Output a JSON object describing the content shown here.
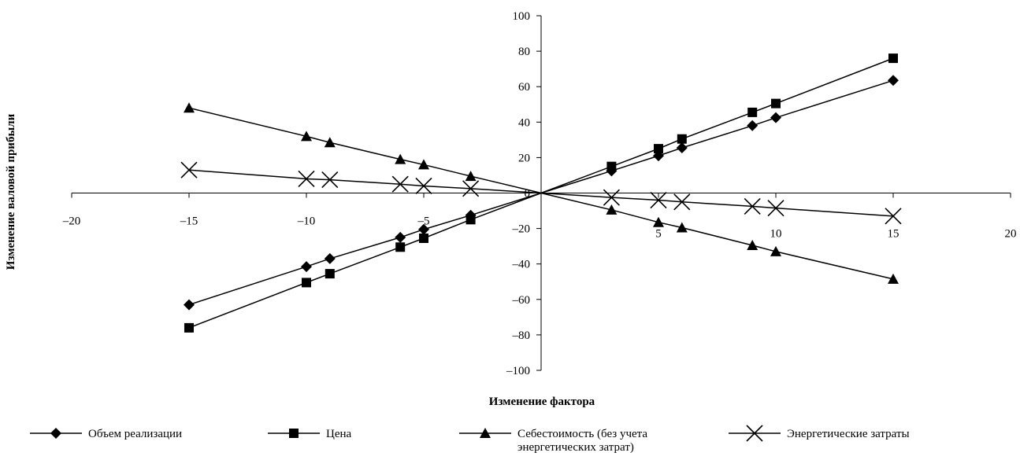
{
  "chart_data": {
    "type": "line",
    "xlabel": "Изменение фактора",
    "ylabel": "Изменение валовой прибыли",
    "xlim": [
      -20,
      20
    ],
    "ylim": [
      -100,
      100
    ],
    "x_ticks": [
      -20,
      -15,
      -10,
      -5,
      5,
      10,
      15,
      20
    ],
    "y_ticks": [
      100,
      80,
      60,
      40,
      20,
      0,
      -20,
      -40,
      -60,
      -80,
      -100
    ],
    "x_tick_labels": [
      "–20",
      "–15",
      "–10",
      "–5",
      "5",
      "10",
      "15",
      "20"
    ],
    "y_tick_labels": [
      "100",
      "80",
      "60",
      "40",
      "20",
      "0",
      "–20",
      "–40",
      "–60",
      "–80",
      "–100"
    ],
    "grid": false,
    "legend_position": "bottom",
    "series": [
      {
        "name": "Объем реализации",
        "marker": "diamond",
        "points": [
          [
            -15,
            -63
          ],
          [
            -10,
            -41.5
          ],
          [
            -9,
            -37
          ],
          [
            -6,
            -25
          ],
          [
            -5,
            -20.5
          ],
          [
            -3,
            -12.5
          ],
          [
            0,
            0
          ],
          [
            3,
            12.5
          ],
          [
            5,
            21
          ],
          [
            6,
            25.5
          ],
          [
            9,
            38
          ],
          [
            10,
            42.5
          ],
          [
            15,
            63.5
          ]
        ]
      },
      {
        "name": "Цена",
        "marker": "square",
        "points": [
          [
            -15,
            -76
          ],
          [
            -10,
            -50.5
          ],
          [
            -9,
            -45.5
          ],
          [
            -6,
            -30.5
          ],
          [
            -5,
            -25.5
          ],
          [
            -3,
            -15
          ],
          [
            0,
            0
          ],
          [
            3,
            15
          ],
          [
            5,
            25
          ],
          [
            6,
            30.5
          ],
          [
            9,
            45.5
          ],
          [
            10,
            50.5
          ],
          [
            15,
            76
          ]
        ]
      },
      {
        "name": "Себестоимость (без учета энергетических затрат)",
        "name_lines": [
          "Себестоимость (без учета",
          "энергетических затрат)"
        ],
        "marker": "triangle",
        "points": [
          [
            -15,
            48
          ],
          [
            -10,
            32
          ],
          [
            -9,
            28.5
          ],
          [
            -6,
            19
          ],
          [
            -5,
            16
          ],
          [
            -3,
            9.5
          ],
          [
            0,
            0
          ],
          [
            3,
            -9.5
          ],
          [
            5,
            -16.5
          ],
          [
            6,
            -19.5
          ],
          [
            9,
            -29.5
          ],
          [
            10,
            -33
          ],
          [
            15,
            -48.5
          ]
        ]
      },
      {
        "name": "Энергетические затраты",
        "marker": "x",
        "points": [
          [
            -15,
            13
          ],
          [
            -10,
            8
          ],
          [
            -9,
            7.5
          ],
          [
            -6,
            5
          ],
          [
            -5,
            4
          ],
          [
            -3,
            2.5
          ],
          [
            0,
            0
          ],
          [
            3,
            -2.5
          ],
          [
            5,
            -4
          ],
          [
            6,
            -5
          ],
          [
            9,
            -7.5
          ],
          [
            10,
            -8.5
          ],
          [
            15,
            -13
          ]
        ]
      }
    ]
  }
}
